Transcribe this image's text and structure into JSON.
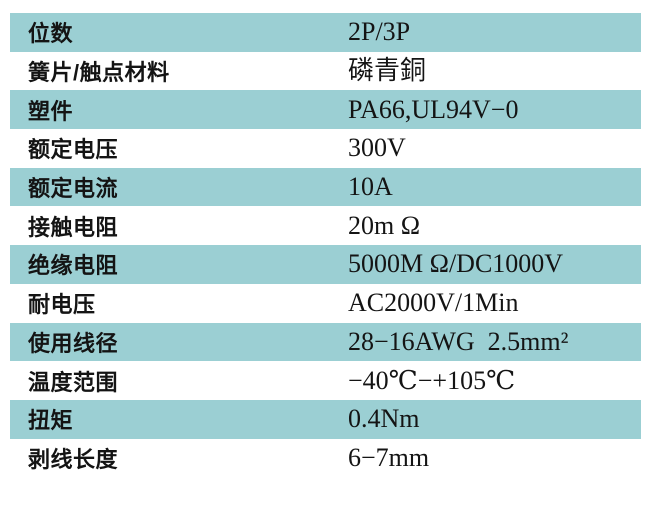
{
  "colors": {
    "row_highlight": "#9bcfd3",
    "text": "#141414",
    "page_background": "#ffffff"
  },
  "table": {
    "columns": [
      "parameter",
      "value"
    ],
    "rows": [
      {
        "label": "位数",
        "value": "2P/3P",
        "highlighted": true
      },
      {
        "label": "簧片/触点材料",
        "value": "磷青銅",
        "highlighted": false
      },
      {
        "label": "塑件",
        "value": "PA66,UL94V−0",
        "highlighted": true
      },
      {
        "label": "额定电压",
        "value": "300V",
        "highlighted": false
      },
      {
        "label": "额定电流",
        "value": "10A",
        "highlighted": true
      },
      {
        "label": "接触电阻",
        "value": "20m Ω",
        "highlighted": false
      },
      {
        "label": "绝缘电阻",
        "value": "5000M Ω/DC1000V",
        "highlighted": true
      },
      {
        "label": "耐电压",
        "value": "AC2000V/1Min",
        "highlighted": false
      },
      {
        "label": "使用线径",
        "value": "28−16AWG  2.5mm²",
        "highlighted": true
      },
      {
        "label": "温度范围",
        "value": "−40℃−+105℃",
        "highlighted": false
      },
      {
        "label": "扭矩",
        "value": "0.4Nm",
        "highlighted": true
      },
      {
        "label": "剥线长度",
        "value": "6−7mm",
        "highlighted": false
      }
    ]
  }
}
